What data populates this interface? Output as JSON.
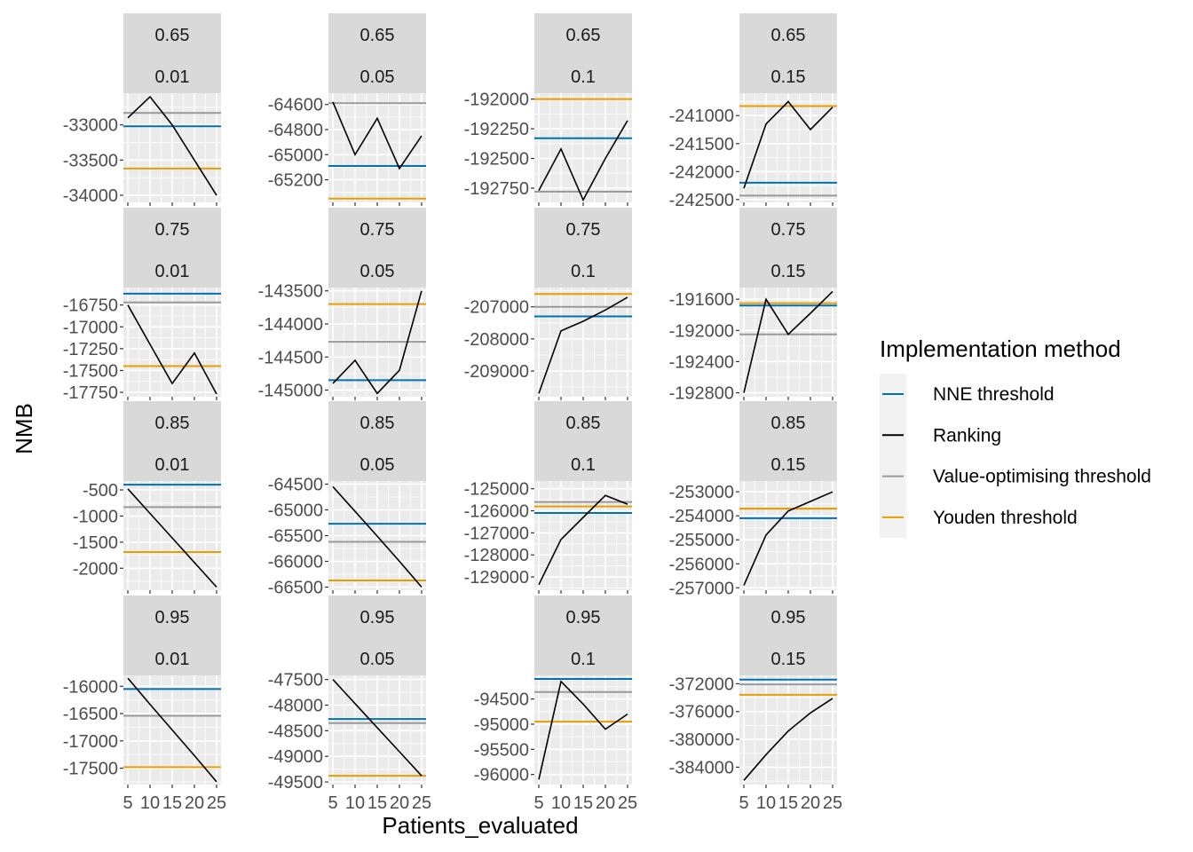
{
  "chart_data": {
    "type": "line",
    "xlabel": "Patients_evaluated",
    "ylabel": "NMB",
    "x_ticks": [
      5,
      10,
      15,
      20,
      25
    ],
    "x_tick_labels": [
      "5",
      "10",
      "15",
      "20",
      "25"
    ],
    "xlim": [
      4,
      26
    ],
    "legend": {
      "title": "Implementation method",
      "position": "right",
      "entries": [
        {
          "label": "NNE threshold",
          "color": "#0072B2"
        },
        {
          "label": "Ranking",
          "color": "#000000"
        },
        {
          "label": "Value-optimising threshold",
          "color": "#999999"
        },
        {
          "label": "Youden threshold",
          "color": "#E69F00"
        }
      ]
    },
    "panels": [
      {
        "row": 0,
        "col": 0,
        "facet": [
          "0.65",
          "0.01"
        ],
        "ylim": [
          -34100,
          -32550
        ],
        "y_ticks": [
          -34000,
          -33500,
          -33000
        ],
        "y_tick_labels": [
          "-34000",
          "-33500",
          "-33000"
        ],
        "ranking": [
          {
            "x": 5,
            "y": -32900
          },
          {
            "x": 10,
            "y": -32600
          },
          {
            "x": 15,
            "y": -33000
          },
          {
            "x": 20,
            "y": -33500
          },
          {
            "x": 25,
            "y": -34000
          }
        ],
        "nne": -33020,
        "vot": -32830,
        "youden": -33620
      },
      {
        "row": 0,
        "col": 1,
        "facet": [
          "0.65",
          "0.05"
        ],
        "ylim": [
          -65380,
          -64510
        ],
        "y_ticks": [
          -65200,
          -65000,
          -64800,
          -64600
        ],
        "y_tick_labels": [
          "-65200",
          "-65000",
          "-64800",
          "-64600"
        ],
        "ranking": [
          {
            "x": 5,
            "y": -64580
          },
          {
            "x": 10,
            "y": -65000
          },
          {
            "x": 15,
            "y": -64710
          },
          {
            "x": 20,
            "y": -65110
          },
          {
            "x": 25,
            "y": -64850
          }
        ],
        "nne": -65090,
        "vot": -64590,
        "youden": -65350
      },
      {
        "row": 0,
        "col": 2,
        "facet": [
          "0.65",
          "0.1"
        ],
        "ylim": [
          -192870,
          -191950
        ],
        "y_ticks": [
          -192750,
          -192500,
          -192250,
          -192000
        ],
        "y_tick_labels": [
          "-192750",
          "-192500",
          "-192250",
          "-192000"
        ],
        "ranking": [
          {
            "x": 5,
            "y": -192770
          },
          {
            "x": 10,
            "y": -192420
          },
          {
            "x": 15,
            "y": -192850
          },
          {
            "x": 20,
            "y": -192500
          },
          {
            "x": 25,
            "y": -192180
          }
        ],
        "nne": -192330,
        "vot": -192780,
        "youden": -192000
      },
      {
        "row": 0,
        "col": 3,
        "facet": [
          "0.65",
          "0.15"
        ],
        "ylim": [
          -242550,
          -240600
        ],
        "y_ticks": [
          -242500,
          -242000,
          -241500,
          -241000
        ],
        "y_tick_labels": [
          "-242500",
          "-242000",
          "-241500",
          "-241000"
        ],
        "ranking": [
          {
            "x": 5,
            "y": -242300
          },
          {
            "x": 10,
            "y": -241150
          },
          {
            "x": 15,
            "y": -240750
          },
          {
            "x": 20,
            "y": -241250
          },
          {
            "x": 25,
            "y": -240850
          }
        ],
        "nne": -242200,
        "vot": -242430,
        "youden": -240830
      },
      {
        "row": 1,
        "col": 0,
        "facet": [
          "0.75",
          "0.01"
        ],
        "ylim": [
          -17800,
          -16550
        ],
        "y_ticks": [
          -17750,
          -17500,
          -17250,
          -17000,
          -16750
        ],
        "y_tick_labels": [
          "-17750",
          "-17500",
          "-17250",
          "-17000",
          "-16750"
        ],
        "ranking": [
          {
            "x": 5,
            "y": -16750
          },
          {
            "x": 10,
            "y": -17200
          },
          {
            "x": 15,
            "y": -17650
          },
          {
            "x": 20,
            "y": -17300
          },
          {
            "x": 25,
            "y": -17770
          }
        ],
        "nne": -16620,
        "vot": -16720,
        "youden": -17450
      },
      {
        "row": 1,
        "col": 1,
        "facet": [
          "0.75",
          "0.05"
        ],
        "ylim": [
          -145100,
          -143450
        ],
        "y_ticks": [
          -145000,
          -144500,
          -144000,
          -143500
        ],
        "y_tick_labels": [
          "-145000",
          "-144500",
          "-144000",
          "-143500"
        ],
        "ranking": [
          {
            "x": 5,
            "y": -144900
          },
          {
            "x": 10,
            "y": -144550
          },
          {
            "x": 15,
            "y": -145050
          },
          {
            "x": 20,
            "y": -144700
          },
          {
            "x": 25,
            "y": -143500
          }
        ],
        "nne": -144850,
        "vot": -144270,
        "youden": -143700
      },
      {
        "row": 1,
        "col": 2,
        "facet": [
          "0.75",
          "0.1"
        ],
        "ylim": [
          -209800,
          -206400
        ],
        "y_ticks": [
          -209000,
          -208000,
          -207000
        ],
        "y_tick_labels": [
          "-209000",
          "-208000",
          "-207000"
        ],
        "ranking": [
          {
            "x": 5,
            "y": -209700
          },
          {
            "x": 10,
            "y": -207750
          },
          {
            "x": 15,
            "y": -207450
          },
          {
            "x": 20,
            "y": -207100
          },
          {
            "x": 25,
            "y": -206700
          }
        ],
        "nne": -207300,
        "vot": -207000,
        "youden": -206600
      },
      {
        "row": 1,
        "col": 3,
        "facet": [
          "0.75",
          "0.15"
        ],
        "ylim": [
          -192850,
          -191450
        ],
        "y_ticks": [
          -192800,
          -192400,
          -192000,
          -191600
        ],
        "y_tick_labels": [
          "-192800",
          "-192400",
          "-192000",
          "-191600"
        ],
        "ranking": [
          {
            "x": 5,
            "y": -192800
          },
          {
            "x": 10,
            "y": -191600
          },
          {
            "x": 15,
            "y": -192050
          },
          {
            "x": 20,
            "y": -191780
          },
          {
            "x": 25,
            "y": -191500
          }
        ],
        "nne": -191680,
        "vot": -192050,
        "youden": -191650
      },
      {
        "row": 2,
        "col": 0,
        "facet": [
          "0.85",
          "0.01"
        ],
        "ylim": [
          -2420,
          -330
        ],
        "y_ticks": [
          -2000,
          -1500,
          -1000,
          -500
        ],
        "y_tick_labels": [
          "-2000",
          "-1500",
          "-1000",
          "-500"
        ],
        "ranking": [
          {
            "x": 5,
            "y": -480
          },
          {
            "x": 10,
            "y": -950
          },
          {
            "x": 15,
            "y": -1420
          },
          {
            "x": 20,
            "y": -1890
          },
          {
            "x": 25,
            "y": -2360
          }
        ],
        "nne": -400,
        "vot": -830,
        "youden": -1690
      },
      {
        "row": 2,
        "col": 1,
        "facet": [
          "0.85",
          "0.05"
        ],
        "ylim": [
          -66560,
          -64440
        ],
        "y_ticks": [
          -66500,
          -66000,
          -65500,
          -65000,
          -64500
        ],
        "y_tick_labels": [
          "-66500",
          "-66000",
          "-65500",
          "-65000",
          "-64500"
        ],
        "ranking": [
          {
            "x": 5,
            "y": -64550
          },
          {
            "x": 10,
            "y": -65030
          },
          {
            "x": 15,
            "y": -65510
          },
          {
            "x": 20,
            "y": -66000
          },
          {
            "x": 25,
            "y": -66500
          }
        ],
        "nne": -65270,
        "vot": -65620,
        "youden": -66370
      },
      {
        "row": 2,
        "col": 2,
        "facet": [
          "0.85",
          "0.1"
        ],
        "ylim": [
          -129600,
          -124650
        ],
        "y_ticks": [
          -129000,
          -128000,
          -127000,
          -126000,
          -125000
        ],
        "y_tick_labels": [
          "-129000",
          "-128000",
          "-127000",
          "-126000",
          "-125000"
        ],
        "ranking": [
          {
            "x": 5,
            "y": -129350
          },
          {
            "x": 10,
            "y": -127300
          },
          {
            "x": 15,
            "y": -126300
          },
          {
            "x": 20,
            "y": -125300
          },
          {
            "x": 25,
            "y": -125700
          }
        ],
        "nne": -126100,
        "vot": -125600,
        "youden": -125800
      },
      {
        "row": 2,
        "col": 3,
        "facet": [
          "0.85",
          "0.15"
        ],
        "ylim": [
          -257100,
          -252550
        ],
        "y_ticks": [
          -257000,
          -256000,
          -255000,
          -254000,
          -253000
        ],
        "y_tick_labels": [
          "-257000",
          "-256000",
          "-255000",
          "-254000",
          "-253000"
        ],
        "ranking": [
          {
            "x": 5,
            "y": -256900
          },
          {
            "x": 10,
            "y": -254800
          },
          {
            "x": 15,
            "y": -253800
          },
          {
            "x": 20,
            "y": -253400
          },
          {
            "x": 25,
            "y": -253000
          }
        ],
        "nne": -254100,
        "vot": -253700,
        "youden": -253700
      },
      {
        "row": 3,
        "col": 0,
        "facet": [
          "0.95",
          "0.01"
        ],
        "ylim": [
          -17800,
          -15800
        ],
        "y_ticks": [
          -17500,
          -17000,
          -16500,
          -16000
        ],
        "y_tick_labels": [
          "-17500",
          "-17000",
          "-16500",
          "-16000"
        ],
        "ranking": [
          {
            "x": 5,
            "y": -15850
          },
          {
            "x": 10,
            "y": -16330
          },
          {
            "x": 15,
            "y": -16800
          },
          {
            "x": 20,
            "y": -17270
          },
          {
            "x": 25,
            "y": -17750
          }
        ],
        "nne": -16050,
        "vot": -16540,
        "youden": -17480
      },
      {
        "row": 3,
        "col": 1,
        "facet": [
          "0.95",
          "0.05"
        ],
        "ylim": [
          -49550,
          -47420
        ],
        "y_ticks": [
          -49500,
          -49000,
          -48500,
          -48000,
          -47500
        ],
        "y_tick_labels": [
          "-49500",
          "-49000",
          "-48500",
          "-48000",
          "-47500"
        ],
        "ranking": [
          {
            "x": 5,
            "y": -47500
          },
          {
            "x": 10,
            "y": -47970
          },
          {
            "x": 15,
            "y": -48440
          },
          {
            "x": 20,
            "y": -48910
          },
          {
            "x": 25,
            "y": -49380
          }
        ],
        "nne": -48270,
        "vot": -48350,
        "youden": -49380
      },
      {
        "row": 3,
        "col": 2,
        "facet": [
          "0.95",
          "0.1"
        ],
        "ylim": [
          -96200,
          -94030
        ],
        "y_ticks": [
          -96000,
          -95500,
          -95000,
          -94500
        ],
        "y_tick_labels": [
          "-96000",
          "-95500",
          "-95000",
          "-94500"
        ],
        "ranking": [
          {
            "x": 5,
            "y": -96100
          },
          {
            "x": 10,
            "y": -94150
          },
          {
            "x": 15,
            "y": -94600
          },
          {
            "x": 20,
            "y": -95100
          },
          {
            "x": 25,
            "y": -94800
          }
        ],
        "nne": -94100,
        "vot": -94360,
        "youden": -94950
      },
      {
        "row": 3,
        "col": 3,
        "facet": [
          "0.95",
          "0.15"
        ],
        "ylim": [
          -386500,
          -370800
        ],
        "y_ticks": [
          -384000,
          -380000,
          -376000,
          -372000
        ],
        "y_tick_labels": [
          "-384000",
          "-380000",
          "-376000",
          "-372000"
        ],
        "ranking": [
          {
            "x": 5,
            "y": -385900
          },
          {
            "x": 10,
            "y": -382200
          },
          {
            "x": 15,
            "y": -378800
          },
          {
            "x": 20,
            "y": -376200
          },
          {
            "x": 25,
            "y": -374100
          }
        ],
        "nne": -371400,
        "vot": -372100,
        "youden": -373600
      }
    ]
  }
}
